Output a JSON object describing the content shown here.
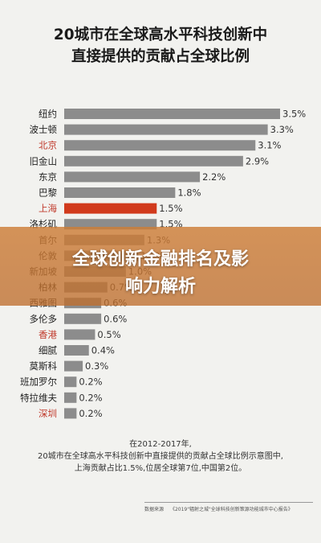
{
  "title_lines": [
    "20城市在全球高水平科技创新中",
    "直接提供的贡献占全球比例"
  ],
  "banner_lines": [
    "全球创新金融排名及影",
    "响力解析"
  ],
  "note_lines": [
    "在2012-2017年,",
    "20城市在全球高水平科技创新中直接提供的贡献占全球比例示意图中,",
    "上海贡献占比1.5%,位居全球第7位,中国第2位。"
  ],
  "footer": {
    "source_label": "数据来源",
    "source_text": "《2019\"辐射之城\"全球科技创新策源功能城市中心报告》"
  },
  "colors": {
    "bar": "#8c8c8c",
    "highlight_bar": "#d13a1c",
    "china_label": "#c0392b",
    "label": "#222222"
  },
  "chart_data": {
    "type": "bar",
    "orientation": "horizontal",
    "title": "20城市在全球高水平科技创新中直接提供的贡献占全球比例",
    "categories": [
      "纽约",
      "波士顿",
      "北京",
      "旧金山",
      "东京",
      "巴黎",
      "上海",
      "洛杉矶",
      "首尔",
      "伦敦",
      "新加坡",
      "柏林",
      "西雅图",
      "多伦多",
      "香港",
      "细腻",
      "莫斯科",
      "班加罗尔",
      "特拉维夫",
      "深圳"
    ],
    "values": [
      3.5,
      3.3,
      3.1,
      2.9,
      2.2,
      1.8,
      1.5,
      1.5,
      1.3,
      1.2,
      1.0,
      0.7,
      0.6,
      0.6,
      0.5,
      0.4,
      0.3,
      0.2,
      0.2,
      0.2
    ],
    "value_labels": [
      "3.5%",
      "3.3%",
      "3.1%",
      "2.9%",
      "2.2%",
      "1.8%",
      "1.5%",
      "1.5%",
      "1.3%",
      "1.2%",
      "1.0%",
      "0.7%",
      "0.6%",
      "0.6%",
      "0.5%",
      "0.4%",
      "0.3%",
      "0.2%",
      "0.2%",
      "0.2%"
    ],
    "highlight": "上海",
    "china_cities": [
      "北京",
      "上海",
      "香港",
      "深圳"
    ],
    "xlim": [
      0,
      3.5
    ]
  }
}
